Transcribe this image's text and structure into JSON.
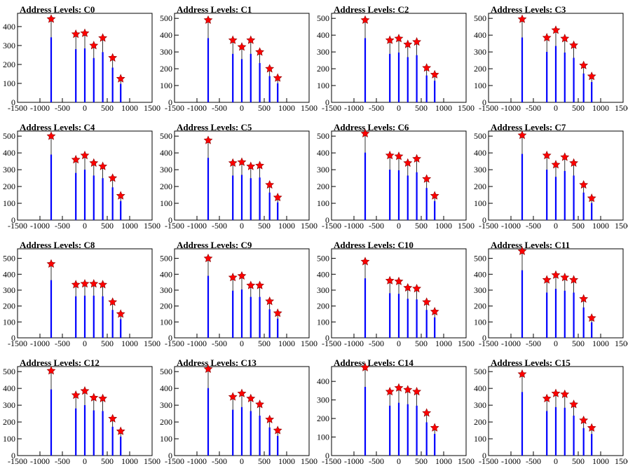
{
  "chart_data": [
    {
      "type": "bar",
      "title": "Address Levels: C0",
      "xlim": [
        -1500,
        1500
      ],
      "x_ticks": [
        "-1500",
        "-1000",
        "-500",
        "0",
        "500",
        "1000",
        "1500"
      ],
      "ylim": [
        0,
        470
      ],
      "y_ticks": [
        "100",
        "200",
        "300",
        "400"
      ],
      "peaks": [
        {
          "x": -750,
          "y": 440
        },
        {
          "x": -200,
          "y": 360
        },
        {
          "x": 0,
          "y": 365
        },
        {
          "x": 200,
          "y": 300
        },
        {
          "x": 400,
          "y": 340
        },
        {
          "x": 620,
          "y": 235
        },
        {
          "x": 800,
          "y": 125
        }
      ]
    },
    {
      "type": "bar",
      "title": "Address Levels: C1",
      "xlim": [
        -1500,
        1500
      ],
      "x_ticks": [
        "-1500",
        "-1000",
        "-500",
        "0",
        "500",
        "1000",
        "1500"
      ],
      "ylim": [
        0,
        530
      ],
      "y_ticks": [
        "100",
        "200",
        "300",
        "400",
        "500"
      ],
      "peaks": [
        {
          "x": -750,
          "y": 490
        },
        {
          "x": -200,
          "y": 370
        },
        {
          "x": 0,
          "y": 330
        },
        {
          "x": 200,
          "y": 370
        },
        {
          "x": 400,
          "y": 300
        },
        {
          "x": 620,
          "y": 200
        },
        {
          "x": 800,
          "y": 145
        }
      ]
    },
    {
      "type": "bar",
      "title": "Address Levels: C2",
      "xlim": [
        -1500,
        1500
      ],
      "x_ticks": [
        "-1500",
        "-1000",
        "-500",
        "0",
        "500",
        "1000",
        "1500"
      ],
      "ylim": [
        0,
        530
      ],
      "y_ticks": [
        "100",
        "200",
        "300",
        "400",
        "500"
      ],
      "peaks": [
        {
          "x": -750,
          "y": 490
        },
        {
          "x": -200,
          "y": 370
        },
        {
          "x": 0,
          "y": 380
        },
        {
          "x": 200,
          "y": 345
        },
        {
          "x": 400,
          "y": 360
        },
        {
          "x": 620,
          "y": 205
        },
        {
          "x": 800,
          "y": 165
        }
      ]
    },
    {
      "type": "bar",
      "title": "Address Levels: C3",
      "xlim": [
        -1500,
        1500
      ],
      "x_ticks": [
        "-1500",
        "-1000",
        "-500",
        "0",
        "500",
        "1000",
        "1500"
      ],
      "ylim": [
        0,
        530
      ],
      "y_ticks": [
        "100",
        "200",
        "300",
        "400",
        "500"
      ],
      "peaks": [
        {
          "x": -750,
          "y": 495
        },
        {
          "x": -200,
          "y": 385
        },
        {
          "x": 0,
          "y": 430
        },
        {
          "x": 200,
          "y": 380
        },
        {
          "x": 400,
          "y": 340
        },
        {
          "x": 620,
          "y": 220
        },
        {
          "x": 800,
          "y": 155
        }
      ]
    },
    {
      "type": "bar",
      "title": "Address Levels: C4",
      "xlim": [
        -1500,
        1500
      ],
      "x_ticks": [
        "-1500",
        "-1000",
        "-500",
        "0",
        "500",
        "1000",
        "1500"
      ],
      "ylim": [
        0,
        530
      ],
      "y_ticks": [
        "100",
        "200",
        "300",
        "400",
        "500"
      ],
      "peaks": [
        {
          "x": -750,
          "y": 500
        },
        {
          "x": -200,
          "y": 360
        },
        {
          "x": 0,
          "y": 385
        },
        {
          "x": 200,
          "y": 340
        },
        {
          "x": 400,
          "y": 320
        },
        {
          "x": 620,
          "y": 250
        },
        {
          "x": 800,
          "y": 145
        }
      ]
    },
    {
      "type": "bar",
      "title": "Address Levels: C5",
      "xlim": [
        -1500,
        1500
      ],
      "x_ticks": [
        "-1500",
        "-1000",
        "-500",
        "0",
        "500",
        "1000",
        "1500"
      ],
      "ylim": [
        0,
        530
      ],
      "y_ticks": [
        "100",
        "200",
        "300",
        "400",
        "500"
      ],
      "peaks": [
        {
          "x": -750,
          "y": 475
        },
        {
          "x": -200,
          "y": 340
        },
        {
          "x": 0,
          "y": 345
        },
        {
          "x": 200,
          "y": 320
        },
        {
          "x": 400,
          "y": 325
        },
        {
          "x": 620,
          "y": 210
        },
        {
          "x": 800,
          "y": 135
        }
      ]
    },
    {
      "type": "bar",
      "title": "Address Levels: C6",
      "xlim": [
        -1500,
        1500
      ],
      "x_ticks": [
        "-1500",
        "-1000",
        "-500",
        "0",
        "500",
        "1000",
        "1500"
      ],
      "ylim": [
        0,
        530
      ],
      "y_ticks": [
        "100",
        "200",
        "300",
        "400",
        "500"
      ],
      "peaks": [
        {
          "x": -750,
          "y": 515
        },
        {
          "x": -200,
          "y": 385
        },
        {
          "x": 0,
          "y": 380
        },
        {
          "x": 200,
          "y": 340
        },
        {
          "x": 400,
          "y": 365
        },
        {
          "x": 620,
          "y": 245
        },
        {
          "x": 800,
          "y": 145
        }
      ]
    },
    {
      "type": "bar",
      "title": "Address Levels: C7",
      "xlim": [
        -1500,
        1500
      ],
      "x_ticks": [
        "-1500",
        "-1000",
        "-500",
        "0",
        "500",
        "1000",
        "1500"
      ],
      "ylim": [
        0,
        530
      ],
      "y_ticks": [
        "100",
        "200",
        "300",
        "400",
        "500"
      ],
      "peaks": [
        {
          "x": -750,
          "y": 505
        },
        {
          "x": -200,
          "y": 385
        },
        {
          "x": 0,
          "y": 330
        },
        {
          "x": 200,
          "y": 375
        },
        {
          "x": 400,
          "y": 340
        },
        {
          "x": 620,
          "y": 210
        },
        {
          "x": 800,
          "y": 130
        }
      ]
    },
    {
      "type": "bar",
      "title": "Address Levels: C8",
      "xlim": [
        -1500,
        1500
      ],
      "x_ticks": [
        "-1500",
        "-1000",
        "-500",
        "0",
        "500",
        "1000",
        "1500"
      ],
      "ylim": [
        0,
        560
      ],
      "y_ticks": [
        "100",
        "200",
        "300",
        "400",
        "500"
      ],
      "peaks": [
        {
          "x": -750,
          "y": 465
        },
        {
          "x": -200,
          "y": 335
        },
        {
          "x": 0,
          "y": 340
        },
        {
          "x": 200,
          "y": 340
        },
        {
          "x": 400,
          "y": 335
        },
        {
          "x": 620,
          "y": 225
        },
        {
          "x": 800,
          "y": 150
        }
      ]
    },
    {
      "type": "bar",
      "title": "Address Levels: C9",
      "xlim": [
        -1500,
        1500
      ],
      "x_ticks": [
        "-1500",
        "-1000",
        "-500",
        "0",
        "500",
        "1000",
        "1500"
      ],
      "ylim": [
        0,
        560
      ],
      "y_ticks": [
        "100",
        "200",
        "300",
        "400",
        "500"
      ],
      "peaks": [
        {
          "x": -750,
          "y": 500
        },
        {
          "x": -200,
          "y": 380
        },
        {
          "x": 0,
          "y": 390
        },
        {
          "x": 200,
          "y": 330
        },
        {
          "x": 400,
          "y": 330
        },
        {
          "x": 620,
          "y": 230
        },
        {
          "x": 800,
          "y": 155
        }
      ]
    },
    {
      "type": "bar",
      "title": "Address Levels: C10",
      "xlim": [
        -1500,
        1500
      ],
      "x_ticks": [
        "-1500",
        "-1000",
        "-500",
        "0",
        "500",
        "1000",
        "1500"
      ],
      "ylim": [
        0,
        560
      ],
      "y_ticks": [
        "100",
        "200",
        "300",
        "400",
        "500"
      ],
      "peaks": [
        {
          "x": -750,
          "y": 480
        },
        {
          "x": -200,
          "y": 360
        },
        {
          "x": 0,
          "y": 355
        },
        {
          "x": 200,
          "y": 315
        },
        {
          "x": 400,
          "y": 310
        },
        {
          "x": 620,
          "y": 225
        },
        {
          "x": 800,
          "y": 165
        }
      ]
    },
    {
      "type": "bar",
      "title": "Address Levels: C11",
      "xlim": [
        -1500,
        1500
      ],
      "x_ticks": [
        "-1500",
        "-1000",
        "-500",
        "0",
        "500",
        "1000",
        "1500"
      ],
      "ylim": [
        0,
        560
      ],
      "y_ticks": [
        "100",
        "200",
        "300",
        "400",
        "500"
      ],
      "peaks": [
        {
          "x": -750,
          "y": 545
        },
        {
          "x": -200,
          "y": 365
        },
        {
          "x": 0,
          "y": 395
        },
        {
          "x": 200,
          "y": 380
        },
        {
          "x": 400,
          "y": 365
        },
        {
          "x": 620,
          "y": 245
        },
        {
          "x": 800,
          "y": 125
        }
      ]
    },
    {
      "type": "bar",
      "title": "Address Levels: C12",
      "xlim": [
        -1500,
        1500
      ],
      "x_ticks": [
        "-1500",
        "-1000",
        "-500",
        "0",
        "500",
        "1000",
        "1500"
      ],
      "ylim": [
        0,
        530
      ],
      "y_ticks": [
        "100",
        "200",
        "300",
        "400",
        "500"
      ],
      "peaks": [
        {
          "x": -750,
          "y": 505
        },
        {
          "x": -200,
          "y": 360
        },
        {
          "x": 0,
          "y": 385
        },
        {
          "x": 200,
          "y": 345
        },
        {
          "x": 400,
          "y": 340
        },
        {
          "x": 620,
          "y": 220
        },
        {
          "x": 800,
          "y": 145
        }
      ]
    },
    {
      "type": "bar",
      "title": "Address Levels: C13",
      "xlim": [
        -1500,
        1500
      ],
      "x_ticks": [
        "-1500",
        "-1000",
        "-500",
        "0",
        "500",
        "1000",
        "1500"
      ],
      "ylim": [
        0,
        530
      ],
      "y_ticks": [
        "100",
        "200",
        "300",
        "400",
        "500"
      ],
      "peaks": [
        {
          "x": -750,
          "y": 515
        },
        {
          "x": -200,
          "y": 350
        },
        {
          "x": 0,
          "y": 370
        },
        {
          "x": 200,
          "y": 340
        },
        {
          "x": 400,
          "y": 305
        },
        {
          "x": 620,
          "y": 215
        },
        {
          "x": 800,
          "y": 150
        }
      ]
    },
    {
      "type": "bar",
      "title": "Address Levels: C14",
      "xlim": [
        -1500,
        1500
      ],
      "x_ticks": [
        "-1500",
        "-1000",
        "-500",
        "0",
        "500",
        "1000",
        "1500"
      ],
      "ylim": [
        0,
        480
      ],
      "y_ticks": [
        "100",
        "200",
        "300",
        "400"
      ],
      "peaks": [
        {
          "x": -750,
          "y": 475
        },
        {
          "x": -200,
          "y": 345
        },
        {
          "x": 0,
          "y": 365
        },
        {
          "x": 200,
          "y": 355
        },
        {
          "x": 400,
          "y": 345
        },
        {
          "x": 620,
          "y": 230
        },
        {
          "x": 800,
          "y": 150
        }
      ]
    },
    {
      "type": "bar",
      "title": "Address Levels: C15",
      "xlim": [
        -1500,
        1500
      ],
      "x_ticks": [
        "-1500",
        "-1000",
        "-500",
        "0",
        "500",
        "1000",
        "1500"
      ],
      "ylim": [
        0,
        530
      ],
      "y_ticks": [
        "100",
        "200",
        "300",
        "400",
        "500"
      ],
      "peaks": [
        {
          "x": -750,
          "y": 485
        },
        {
          "x": -200,
          "y": 340
        },
        {
          "x": 0,
          "y": 370
        },
        {
          "x": 200,
          "y": 365
        },
        {
          "x": 400,
          "y": 305
        },
        {
          "x": 620,
          "y": 210
        },
        {
          "x": 800,
          "y": 165
        }
      ]
    }
  ],
  "colors": {
    "bars": "#0000ff",
    "spike": "#000000",
    "marker": "#ff0000",
    "marker_stroke": "#8b0000",
    "axis": "#000000"
  }
}
